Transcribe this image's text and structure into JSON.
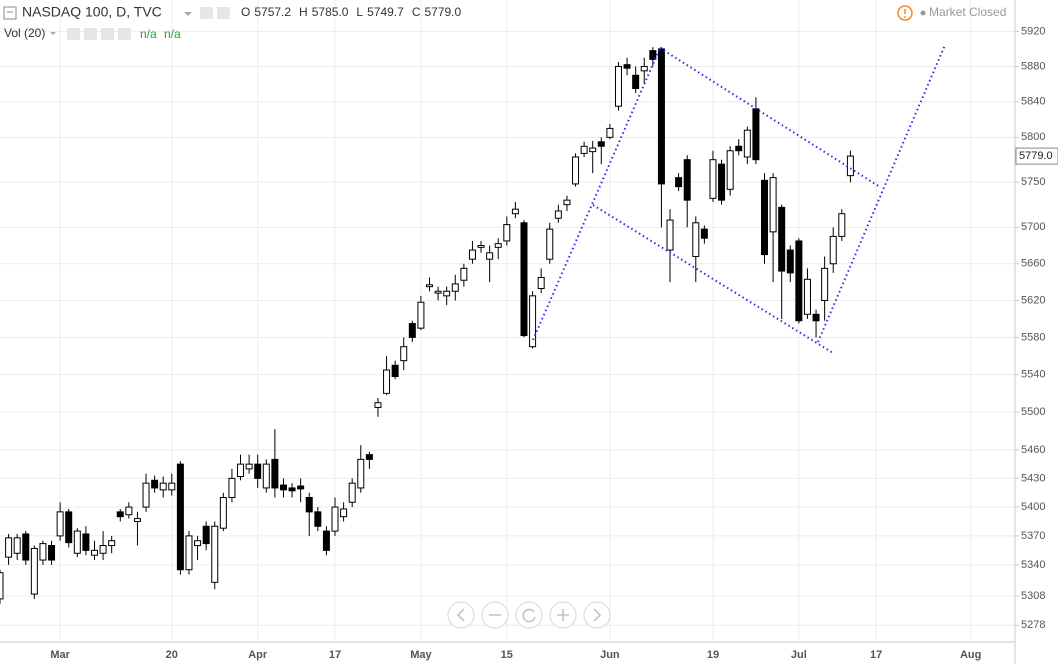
{
  "header": {
    "title": "NASDAQ 100, D, TVC",
    "ohlc": [
      {
        "key": "O",
        "value": "5757.2"
      },
      {
        "key": "H",
        "value": "5785.0"
      },
      {
        "key": "L",
        "value": "5749.7"
      },
      {
        "key": "C",
        "value": "5779.0"
      }
    ],
    "volume_label": "Vol (20)",
    "volume_values": [
      "n/a",
      "n/a"
    ],
    "status": "Market Closed"
  },
  "chart_data": {
    "type": "candlestick",
    "log_scale": true,
    "grid": true,
    "up_color": "#ffffff",
    "down_color": "#000000",
    "outline_color": "#000000",
    "last_price_label": "5779.0",
    "ylim": [
      5261,
      5956
    ],
    "yticks": [
      5278,
      5308,
      5340,
      5370,
      5400,
      5430,
      5460,
      5500,
      5540,
      5580,
      5620,
      5660,
      5700,
      5750,
      5800,
      5840,
      5880,
      5920
    ],
    "categories": [
      null,
      null,
      null,
      null,
      null,
      null,
      null,
      "Mar",
      null,
      null,
      null,
      null,
      null,
      null,
      null,
      null,
      null,
      null,
      null,
      null,
      "20",
      null,
      null,
      null,
      null,
      null,
      null,
      null,
      null,
      null,
      "Apr",
      null,
      null,
      null,
      null,
      null,
      null,
      null,
      null,
      "17",
      null,
      null,
      null,
      null,
      null,
      null,
      null,
      null,
      null,
      "May",
      null,
      null,
      null,
      null,
      null,
      null,
      null,
      null,
      null,
      "15",
      null,
      null,
      null,
      null,
      null,
      null,
      null,
      null,
      null,
      null,
      null,
      "Jun",
      null,
      null,
      null,
      null,
      null,
      null,
      null,
      null,
      null,
      null,
      null,
      "19",
      null,
      null,
      null,
      null,
      null,
      null,
      null,
      null,
      null,
      "Jul",
      null,
      null,
      null,
      null,
      null,
      null,
      null,
      null,
      "17",
      null,
      null,
      null,
      null,
      null,
      null,
      null,
      null,
      null,
      null,
      "Aug"
    ],
    "open": [
      5305,
      5348,
      5352,
      5372,
      5310,
      5345,
      5360,
      5370,
      5395,
      5352,
      5372,
      5350,
      5352,
      5360,
      5395,
      5392,
      5385,
      5400,
      5428,
      5418,
      5418,
      5445,
      5335,
      5360,
      5380,
      5322,
      5378,
      5410,
      5432,
      5440,
      5445,
      5420,
      5450,
      5423,
      5420,
      5422,
      5410,
      5395,
      5375,
      5375,
      5390,
      5405,
      5420,
      5455,
      5505,
      5520,
      5550,
      5555,
      5595,
      5590,
      5635,
      5628,
      5625,
      5630,
      5642,
      5665,
      5678,
      5665,
      5678,
      5685,
      5715,
      5705,
      5570,
      5633,
      5665,
      5710,
      5725,
      5748,
      5782,
      5784,
      5795,
      5800,
      5835,
      5882,
      5870,
      5875,
      5898,
      5900,
      5675,
      5755,
      5775,
      5668,
      5698,
      5732,
      5770,
      5742,
      5790,
      5778,
      5832,
      5752,
      5695,
      5722,
      5675,
      5685,
      5605,
      5605,
      5620,
      5660,
      5690,
      5757.2,
      null,
      null,
      null,
      null,
      null,
      null,
      null,
      null,
      null,
      null,
      null,
      null,
      null,
      null
    ],
    "high": [
      5335,
      5372,
      5372,
      5375,
      5360,
      5365,
      5365,
      5405,
      5398,
      5378,
      5380,
      5365,
      5375,
      5370,
      5398,
      5405,
      5395,
      5435,
      5433,
      5432,
      5435,
      5448,
      5375,
      5370,
      5385,
      5385,
      5415,
      5440,
      5455,
      5455,
      5455,
      5450,
      5482,
      5430,
      5425,
      5430,
      5415,
      5400,
      5380,
      5410,
      5405,
      5430,
      5465,
      5458,
      5515,
      5560,
      5555,
      5580,
      5598,
      5625,
      5645,
      5635,
      5635,
      5648,
      5660,
      5685,
      5685,
      5680,
      5688,
      5712,
      5728,
      5708,
      5630,
      5655,
      5705,
      5725,
      5735,
      5782,
      5795,
      5796,
      5800,
      5815,
      5885,
      5890,
      5880,
      5890,
      5902,
      5902,
      5720,
      5760,
      5780,
      5712,
      5702,
      5785,
      5775,
      5790,
      5798,
      5812,
      5845,
      5760,
      5760,
      5725,
      5680,
      5688,
      5655,
      5610,
      5668,
      5700,
      5720,
      5785,
      null,
      null,
      null,
      null,
      null,
      null,
      null,
      null,
      null,
      null,
      null,
      null,
      null,
      null
    ],
    "low": [
      5300,
      5340,
      5345,
      5340,
      5305,
      5340,
      5340,
      5365,
      5358,
      5348,
      5350,
      5345,
      5345,
      5352,
      5385,
      5388,
      5360,
      5395,
      5415,
      5410,
      5412,
      5330,
      5330,
      5345,
      5355,
      5315,
      5375,
      5405,
      5428,
      5435,
      5420,
      5415,
      5410,
      5410,
      5410,
      5405,
      5370,
      5375,
      5350,
      5370,
      5385,
      5400,
      5415,
      5440,
      5495,
      5518,
      5535,
      5545,
      5575,
      5588,
      5630,
      5620,
      5615,
      5620,
      5635,
      5660,
      5672,
      5640,
      5665,
      5680,
      5710,
      5580,
      5568,
      5628,
      5660,
      5705,
      5718,
      5745,
      5778,
      5760,
      5770,
      5798,
      5830,
      5870,
      5850,
      5860,
      5880,
      5700,
      5640,
      5740,
      5700,
      5640,
      5682,
      5728,
      5725,
      5735,
      5780,
      5770,
      5770,
      5660,
      5640,
      5600,
      5640,
      5595,
      5600,
      5580,
      5598,
      5650,
      5685,
      5749.7,
      null,
      null,
      null,
      null,
      null,
      null,
      null,
      null,
      null,
      null,
      null,
      null,
      null,
      null
    ],
    "close": [
      5332,
      5368,
      5368,
      5345,
      5357,
      5362,
      5345,
      5395,
      5363,
      5375,
      5355,
      5355,
      5360,
      5365,
      5390,
      5400,
      5388,
      5425,
      5420,
      5425,
      5425,
      5335,
      5370,
      5365,
      5362,
      5380,
      5410,
      5430,
      5445,
      5445,
      5430,
      5445,
      5420,
      5418,
      5417,
      5419,
      5395,
      5380,
      5355,
      5400,
      5398,
      5425,
      5450,
      5450,
      5510,
      5545,
      5538,
      5570,
      5580,
      5618,
      5637,
      5630,
      5630,
      5638,
      5655,
      5675,
      5680,
      5672,
      5682,
      5703,
      5720,
      5582,
      5625,
      5645,
      5698,
      5718,
      5730,
      5778,
      5790,
      5788,
      5790,
      5810,
      5880,
      5878,
      5855,
      5880,
      5888,
      5748,
      5708,
      5745,
      5730,
      5705,
      5688,
      5775,
      5730,
      5785,
      5785,
      5808,
      5775,
      5670,
      5755,
      5652,
      5650,
      5598,
      5643,
      5598,
      5655,
      5690,
      5715,
      5779,
      null,
      null,
      null,
      null,
      null,
      null,
      null,
      null,
      null,
      null,
      null,
      null,
      null,
      null
    ]
  }
}
